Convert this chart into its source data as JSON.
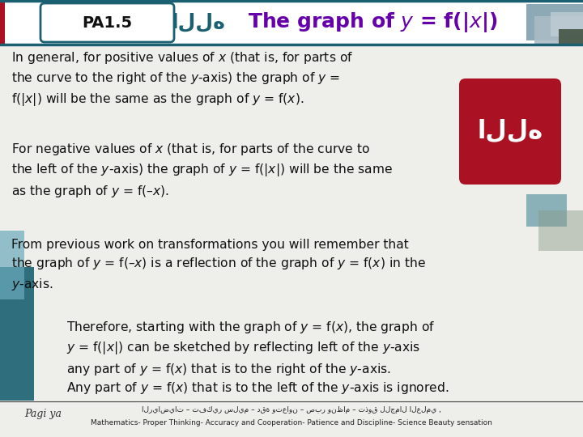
{
  "title_label": "PA1.5",
  "title_main": "The graph of $y$ = f(|$x$|)",
  "title_color": "#6600aa",
  "bg_color": "#eeeeea",
  "para1_normal": "In general, for positive values of ",
  "para1_italic": "x",
  "para1_rest": " (that is, for parts of\nthe curve to the right of the ",
  "para1_y": "y",
  "para1_rest2": "-axis) the graph of ",
  "para1_y2": "y",
  "para1_rest3": " =\nf(|",
  "para1_x2": "x",
  "para1_rest4": "|) will be the same as the graph of ",
  "para1_y3": "y",
  "para1_rest5": " = f(",
  "para1_x3": "x",
  "para1_rest6": ").",
  "para1": "In general, for positive values of $x$ (that is, for parts of\nthe curve to the right of the $y$-axis) the graph of $y$ =\nf(|$x$|) will be the same as the graph of $y$ = f($x$).",
  "para2": "For negative values of $x$ (that is, for parts of the curve to\nthe left of the $y$-axis) the graph of $y$ = f(|$x$|) will be the same\nas the graph of $y$ = f(–$x$).",
  "para3": "From previous work on transformations you will remember that\nthe graph of $y$ = f(–$x$) is a reflection of the graph of $y$ = f($x$) in the\n$y$-axis.",
  "para4a": "Therefore, starting with the graph of $y$ = f($x$), the graph of\n$y$ = f(|$x$|) can be sketched by reflecting left of the $y$-axis\nany part of $y$ = f($x$) that is to the right of the $y$-axis.",
  "para4b": "Any part of $y$ = f($x$) that is to the left of the $y$-axis is ignored.",
  "footer_arabic": "الرياضيات – تفكير سليم – دقة وتعاون – صبر ونظام – تذوق للجمال العلمي ,",
  "footer_english": "Mathematics- Proper Thinking- Accuracy and Cooperation- Patience and Discipline- Science Beauty sensation",
  "text_color": "#111111",
  "teal_dark": "#1a6070",
  "teal_mid": "#3a8090",
  "teal_light": "#6aaabb",
  "red_dark": "#aa1122",
  "gray_dark": "#556655"
}
